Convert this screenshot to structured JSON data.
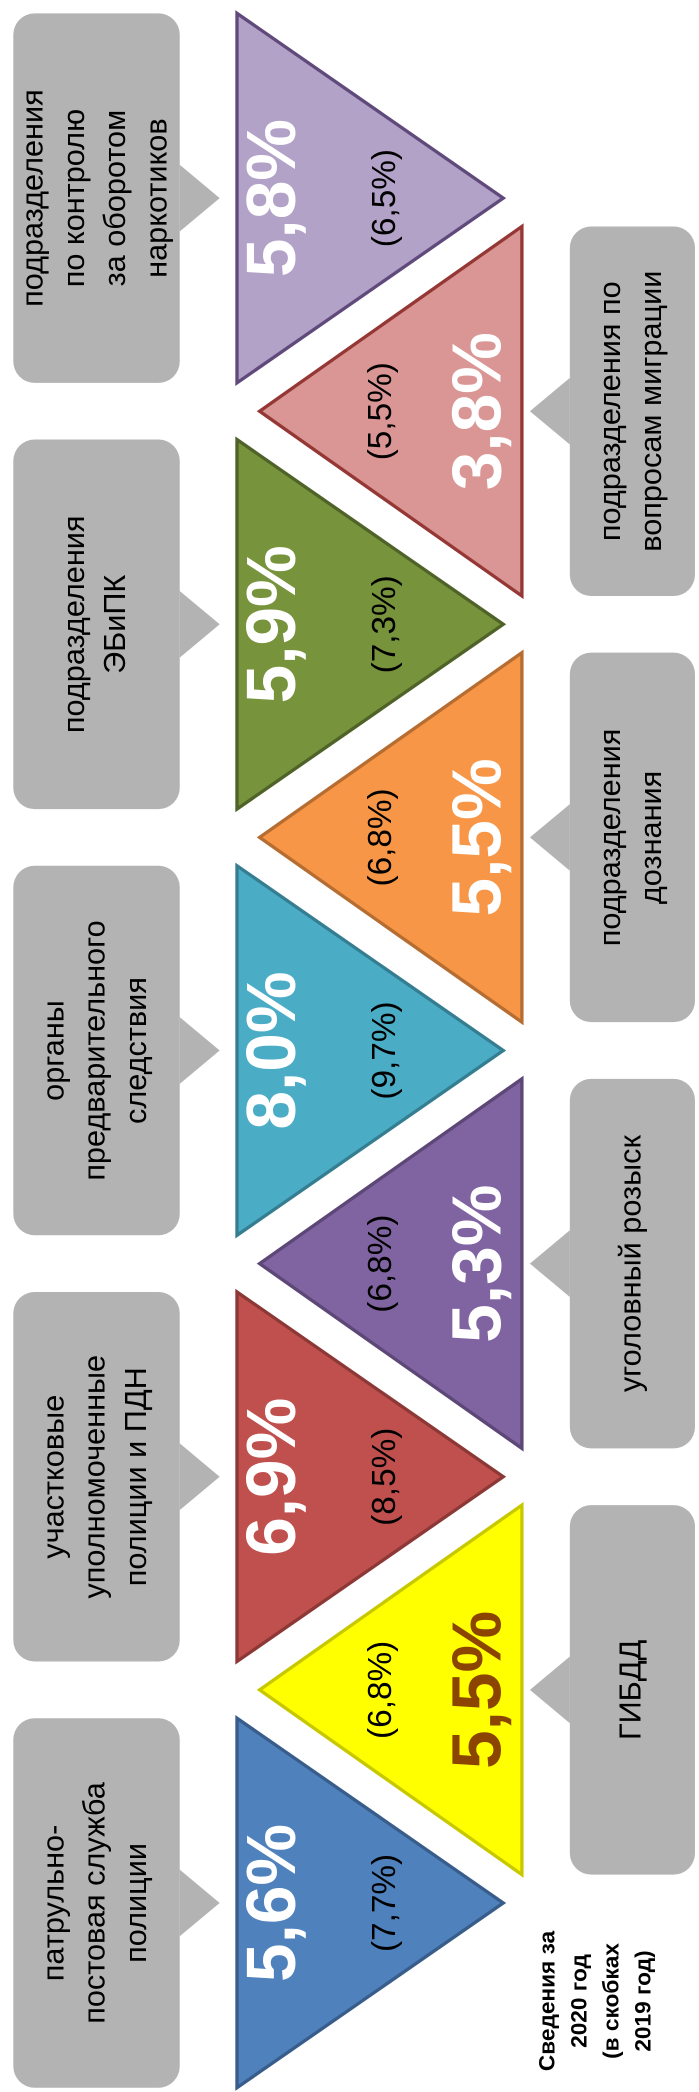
{
  "items": [
    {
      "label": [
        "патрульно-",
        "постовая служба",
        "полиции"
      ],
      "value": "5,6%",
      "prev": "(7,7%)",
      "color": "#4f81bd",
      "border": "#385d8a",
      "value_color": "#ffffff"
    },
    {
      "label": [
        "ГИБДД"
      ],
      "value": "5,5%",
      "prev": "(6,8%)",
      "color": "#ffff00",
      "border": "#c8c800",
      "value_color": "#8b4500"
    },
    {
      "label": [
        "участковые",
        "уполномоченные",
        "полиции и ПДН"
      ],
      "value": "6,9%",
      "prev": "(8,5%)",
      "color": "#c0504d",
      "border": "#8c3836",
      "value_color": "#ffffff"
    },
    {
      "label": [
        "уголовный розыск"
      ],
      "value": "5,3%",
      "prev": "(6,8%)",
      "color": "#8064a2",
      "border": "#5c4776",
      "value_color": "#ffffff"
    },
    {
      "label": [
        "органы",
        "предварительного",
        "следствия"
      ],
      "value": "8,0%",
      "prev": "(9,7%)",
      "color": "#4bacc6",
      "border": "#357d91",
      "value_color": "#ffffff"
    },
    {
      "label": [
        "подразделения",
        "дознания"
      ],
      "value": "5,5%",
      "prev": "(6,8%)",
      "color": "#f79646",
      "border": "#b66d31",
      "value_color": "#ffffff"
    },
    {
      "label": [
        "подразделения",
        "ЭБиПК"
      ],
      "value": "5,9%",
      "prev": "(7,3%)",
      "color": "#77933c",
      "border": "#4f6228",
      "value_color": "#ffffff"
    },
    {
      "label": [
        "подразделения по",
        "вопросам миграции"
      ],
      "value": "3,8%",
      "prev": "(5,5%)",
      "color": "#d99694",
      "border": "#953735",
      "value_color": "#ffffff"
    },
    {
      "label": [
        "подразделения",
        "по контролю",
        "за оборотом",
        "наркотиков"
      ],
      "value": "5,8%",
      "prev": "(6,5%)",
      "color": "#b3a2c7",
      "border": "#604a7b",
      "value_color": "#ffffff"
    }
  ],
  "note": [
    "Сведения за",
    "2020 год",
    "(в скобках",
    "2019 год)"
  ]
}
